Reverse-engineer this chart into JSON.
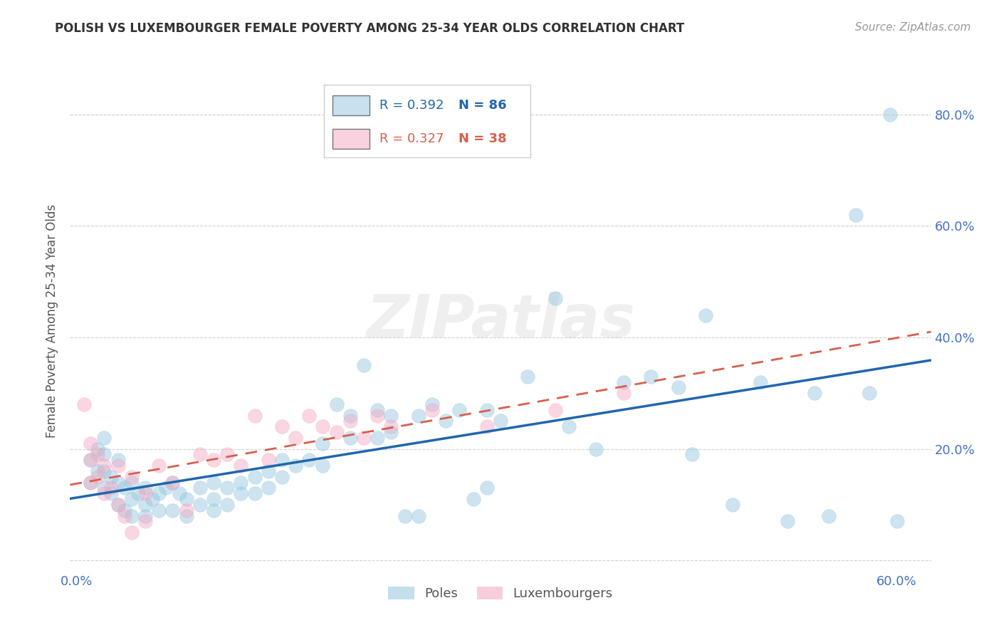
{
  "title": "POLISH VS LUXEMBOURGER FEMALE POVERTY AMONG 25-34 YEAR OLDS CORRELATION CHART",
  "source": "Source: ZipAtlas.com",
  "ylabel": "Female Poverty Among 25-34 Year Olds",
  "xlim": [
    -0.005,
    0.625
  ],
  "ylim": [
    -0.02,
    0.88
  ],
  "xticks": [
    0.0,
    0.1,
    0.2,
    0.3,
    0.4,
    0.5,
    0.6
  ],
  "xtick_labels": [
    "0.0%",
    "",
    "",
    "",
    "",
    "",
    "60.0%"
  ],
  "yticks": [
    0.0,
    0.2,
    0.4,
    0.6,
    0.8
  ],
  "ytick_right_labels": [
    "",
    "20.0%",
    "40.0%",
    "60.0%",
    "80.0%"
  ],
  "poles_color": "#92C5DE",
  "luxembourgers_color": "#F4A6C0",
  "poles_line_color": "#2166AC",
  "luxembourgers_line_color": "#D6604D",
  "legend_R_poles": "R = 0.392",
  "legend_N_poles": "N = 86",
  "legend_R_lux": "R = 0.327",
  "legend_N_lux": "N = 38",
  "watermark": "ZIPatlas",
  "poles_x": [
    0.01,
    0.01,
    0.015,
    0.015,
    0.02,
    0.02,
    0.02,
    0.02,
    0.025,
    0.025,
    0.03,
    0.03,
    0.03,
    0.035,
    0.035,
    0.04,
    0.04,
    0.04,
    0.045,
    0.05,
    0.05,
    0.05,
    0.055,
    0.06,
    0.06,
    0.065,
    0.07,
    0.07,
    0.075,
    0.08,
    0.08,
    0.09,
    0.09,
    0.1,
    0.1,
    0.1,
    0.11,
    0.11,
    0.12,
    0.12,
    0.13,
    0.13,
    0.14,
    0.14,
    0.15,
    0.15,
    0.16,
    0.17,
    0.18,
    0.18,
    0.19,
    0.2,
    0.2,
    0.21,
    0.22,
    0.22,
    0.23,
    0.23,
    0.24,
    0.25,
    0.25,
    0.26,
    0.27,
    0.28,
    0.29,
    0.3,
    0.3,
    0.31,
    0.33,
    0.35,
    0.36,
    0.38,
    0.4,
    0.42,
    0.44,
    0.45,
    0.46,
    0.48,
    0.5,
    0.52,
    0.54,
    0.55,
    0.57,
    0.58,
    0.595,
    0.6
  ],
  "poles_y": [
    0.18,
    0.14,
    0.2,
    0.16,
    0.22,
    0.19,
    0.16,
    0.13,
    0.15,
    0.12,
    0.18,
    0.14,
    0.1,
    0.13,
    0.09,
    0.14,
    0.11,
    0.08,
    0.12,
    0.13,
    0.1,
    0.08,
    0.11,
    0.12,
    0.09,
    0.13,
    0.14,
    0.09,
    0.12,
    0.11,
    0.08,
    0.1,
    0.13,
    0.14,
    0.11,
    0.09,
    0.13,
    0.1,
    0.14,
    0.12,
    0.15,
    0.12,
    0.16,
    0.13,
    0.18,
    0.15,
    0.17,
    0.18,
    0.21,
    0.17,
    0.28,
    0.26,
    0.22,
    0.35,
    0.27,
    0.22,
    0.26,
    0.23,
    0.08,
    0.26,
    0.08,
    0.28,
    0.25,
    0.27,
    0.11,
    0.27,
    0.13,
    0.25,
    0.33,
    0.47,
    0.24,
    0.2,
    0.32,
    0.33,
    0.31,
    0.19,
    0.44,
    0.1,
    0.32,
    0.07,
    0.3,
    0.08,
    0.62,
    0.3,
    0.8,
    0.07
  ],
  "lux_x": [
    0.005,
    0.01,
    0.01,
    0.01,
    0.015,
    0.015,
    0.02,
    0.02,
    0.025,
    0.03,
    0.03,
    0.035,
    0.04,
    0.04,
    0.05,
    0.05,
    0.06,
    0.07,
    0.08,
    0.09,
    0.1,
    0.11,
    0.12,
    0.13,
    0.14,
    0.15,
    0.16,
    0.17,
    0.18,
    0.19,
    0.2,
    0.21,
    0.22,
    0.23,
    0.26,
    0.3,
    0.35,
    0.4
  ],
  "lux_y": [
    0.28,
    0.21,
    0.18,
    0.14,
    0.19,
    0.15,
    0.17,
    0.12,
    0.13,
    0.17,
    0.1,
    0.08,
    0.15,
    0.05,
    0.12,
    0.07,
    0.17,
    0.14,
    0.09,
    0.19,
    0.18,
    0.19,
    0.17,
    0.26,
    0.18,
    0.24,
    0.22,
    0.26,
    0.24,
    0.23,
    0.25,
    0.22,
    0.26,
    0.24,
    0.27,
    0.24,
    0.27,
    0.3
  ],
  "background_color": "#ffffff",
  "grid_color": "#d0d0d0"
}
